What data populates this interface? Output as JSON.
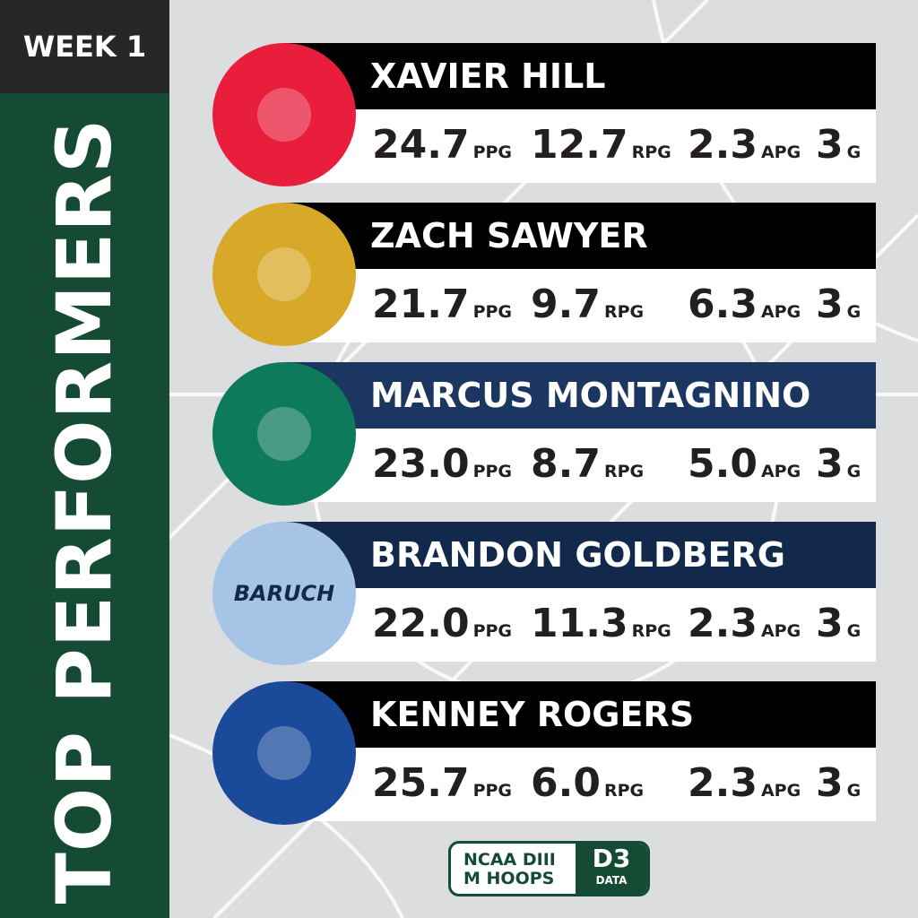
{
  "week_label": "WEEK 1",
  "title": "TOP PERFORMERS",
  "players": [
    {
      "name": "XAVIER HILL",
      "header_color": "#000000",
      "circle_color": "#e91e3c",
      "logo": "red-d-logo",
      "stats": [
        {
          "v": "24.7",
          "u": "PPG"
        },
        {
          "v": "12.7",
          "u": "RPG"
        },
        {
          "v": "2.3",
          "u": "APG"
        },
        {
          "v": "3",
          "u": "G"
        }
      ]
    },
    {
      "name": "ZACH SAWYER",
      "header_color": "#000000",
      "circle_color": "#d8a928",
      "logo": "spartan-m-logo",
      "stats": [
        {
          "v": "21.7",
          "u": "PPG"
        },
        {
          "v": "9.7",
          "u": "RPG"
        },
        {
          "v": "6.3",
          "u": "APG"
        },
        {
          "v": "3",
          "u": "G"
        }
      ]
    },
    {
      "name": "MARCUS MONTAGNINO",
      "header_color": "#1b3761",
      "circle_color": "#0e7a5c",
      "logo": "hawk-logo",
      "stats": [
        {
          "v": "23.0",
          "u": "PPG"
        },
        {
          "v": "8.7",
          "u": "RPG"
        },
        {
          "v": "5.0",
          "u": "APG"
        },
        {
          "v": "3",
          "u": "G"
        }
      ]
    },
    {
      "name": "BRANDON GOLDBERG",
      "header_color": "#13294b",
      "circle_color": "#a6c4e6",
      "logo": "baruch-bearcats-logo",
      "logo_text": "BARUCH",
      "stats": [
        {
          "v": "22.0",
          "u": "PPG"
        },
        {
          "v": "11.3",
          "u": "RPG"
        },
        {
          "v": "2.3",
          "u": "APG"
        },
        {
          "v": "3",
          "u": "G"
        }
      ]
    },
    {
      "name": "KENNEY ROGERS",
      "header_color": "#000000",
      "circle_color": "#1a4b9a",
      "logo": "owl-w-logo",
      "stats": [
        {
          "v": "25.7",
          "u": "PPG"
        },
        {
          "v": "6.0",
          "u": "RPG"
        },
        {
          "v": "2.3",
          "u": "APG"
        },
        {
          "v": "3",
          "u": "G"
        }
      ]
    }
  ],
  "brand": {
    "line1": "NCAA DIII",
    "line2": "M HOOPS",
    "mark": "D3",
    "mark_sub": "DATA",
    "color": "#154a35"
  }
}
